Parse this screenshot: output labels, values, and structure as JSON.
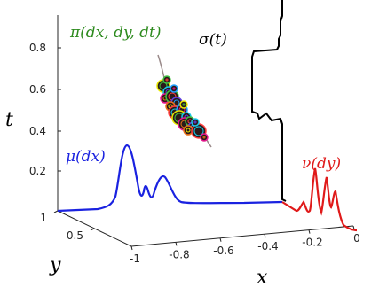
{
  "chart_data": {
    "type": "line",
    "title": "",
    "axes": {
      "x": {
        "label": "x",
        "ticks": [
          "-1",
          "-0.8",
          "-0.6",
          "-0.4",
          "-0.2",
          "0"
        ]
      },
      "y": {
        "label": "y",
        "ticks": [
          "1",
          "0.5"
        ]
      },
      "t": {
        "label": "t",
        "ticks": [
          "0.8",
          "0.6",
          "0.4",
          "0.2"
        ]
      }
    },
    "series": [
      {
        "name": "π(dx, dy, dt)",
        "color": "#2e8b1f"
      },
      {
        "name": "σ(t)",
        "color": "#000000"
      },
      {
        "name": "μ(dx)",
        "color": "#1a22e0"
      },
      {
        "name": "ν(dy)",
        "color": "#e01a1a"
      }
    ]
  }
}
